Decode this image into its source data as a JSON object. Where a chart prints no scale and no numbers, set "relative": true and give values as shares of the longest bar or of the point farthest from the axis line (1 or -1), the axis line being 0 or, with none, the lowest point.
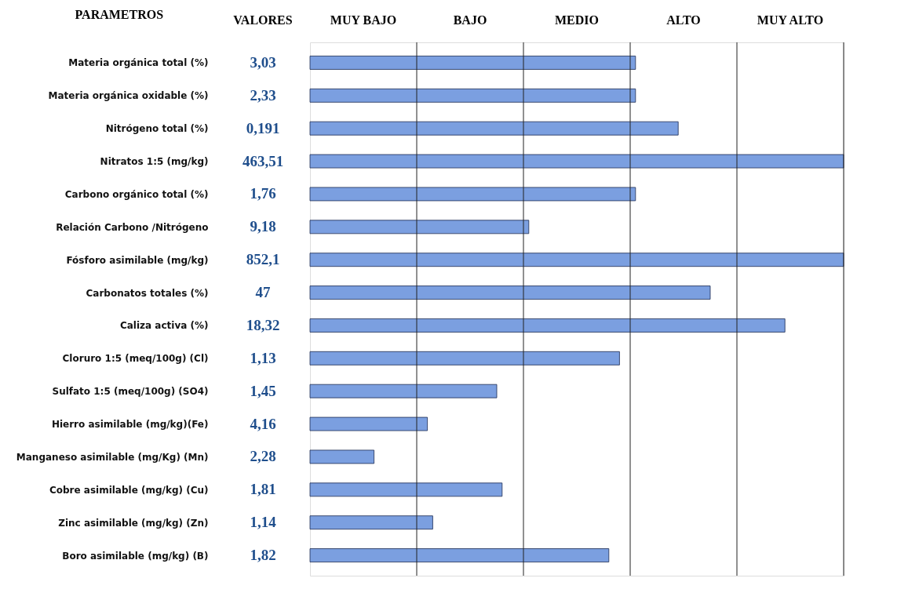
{
  "chart_data": {
    "type": "bar",
    "orientation": "horizontal",
    "relative": true,
    "ylabel": "PARAMETROS",
    "categories": [
      "Materia orgánica total (%)",
      "Materia orgánica oxidable (%)",
      "Nitrógeno total (%)",
      "Nitratos 1:5 (mg/kg)",
      "Carbono orgánico total (%)",
      "Relación Carbono /Nitrógeno",
      "Fósforo asimilable (mg/kg)",
      "Carbonatos totales (%)",
      "Caliza activa (%)",
      "Cloruro 1:5  (meq/100g) (Cl)",
      "Sulfato 1:5  (meq/100g)  (SO4)",
      "Hierro asimilable (mg/kg)(Fe)",
      "Manganeso asimilable (mg/Kg) (Mn)",
      "Cobre asimilable (mg/kg) (Cu)",
      "Zinc asimilable (mg/kg) (Zn)",
      "Boro asimilable (mg/kg) (B)"
    ],
    "values": [
      0.61,
      0.61,
      0.69,
      1,
      0.61,
      0.41,
      1,
      0.75,
      0.89,
      0.58,
      0.35,
      0.22,
      0.12,
      0.36,
      0.23,
      0.56
    ],
    "color": "#7b9fe0",
    "ref_lines": [
      {
        "axis": "x",
        "value": 0.2
      },
      {
        "axis": "x",
        "value": 0.4
      },
      {
        "axis": "x",
        "value": 0.6
      },
      {
        "axis": "x",
        "value": 0.8
      },
      {
        "axis": "x",
        "value": 1
      }
    ],
    "annotations": [
      "VALORES",
      "MUY BAJO",
      "BAJO",
      "MEDIO",
      "ALTO",
      "MUY ALTO",
      "3,03",
      "2,33",
      "0,191",
      "463,51",
      "1,76",
      "9,18",
      "852,1",
      "47",
      "18,32",
      "1,13",
      "1,45",
      "4,16",
      "2,28",
      "1,81",
      "1,14",
      "1,82"
    ]
  }
}
